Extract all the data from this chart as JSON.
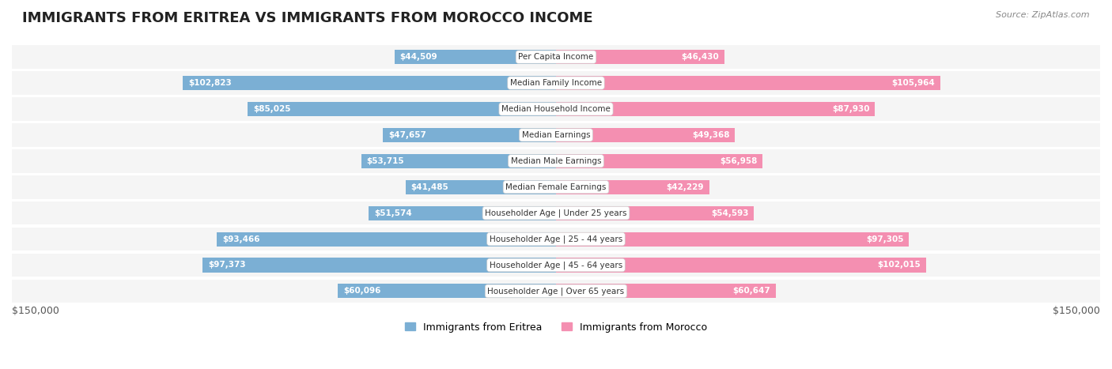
{
  "title": "IMMIGRANTS FROM ERITREA VS IMMIGRANTS FROM MOROCCO INCOME",
  "source": "Source: ZipAtlas.com",
  "categories": [
    "Per Capita Income",
    "Median Family Income",
    "Median Household Income",
    "Median Earnings",
    "Median Male Earnings",
    "Median Female Earnings",
    "Householder Age | Under 25 years",
    "Householder Age | 25 - 44 years",
    "Householder Age | 45 - 64 years",
    "Householder Age | Over 65 years"
  ],
  "eritrea_values": [
    44509,
    102823,
    85025,
    47657,
    53715,
    41485,
    51574,
    93466,
    97373,
    60096
  ],
  "morocco_values": [
    46430,
    105964,
    87930,
    49368,
    56958,
    42229,
    54593,
    97305,
    102015,
    60647
  ],
  "eritrea_labels": [
    "$44,509",
    "$102,823",
    "$85,025",
    "$47,657",
    "$53,715",
    "$41,485",
    "$51,574",
    "$93,466",
    "$97,373",
    "$60,096"
  ],
  "morocco_labels": [
    "$46,430",
    "$105,964",
    "$87,930",
    "$49,368",
    "$56,958",
    "$42,229",
    "$54,593",
    "$97,305",
    "$102,015",
    "$60,647"
  ],
  "eritrea_color": "#7bafd4",
  "morocco_color": "#f48fb1",
  "eritrea_label_color_inside": "#ffffff",
  "eritrea_label_color_outside": "#555555",
  "morocco_label_color_inside": "#ffffff",
  "morocco_label_color_outside": "#555555",
  "background_color": "#ffffff",
  "row_bg_color": "#f0f0f0",
  "max_value": 150000,
  "legend_eritrea": "Immigrants from Eritrea",
  "legend_morocco": "Immigrants from Morocco",
  "xlabel_left": "$150,000",
  "xlabel_right": "$150,000"
}
